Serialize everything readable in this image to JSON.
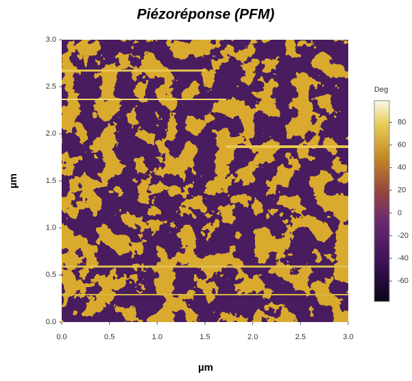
{
  "chart_data": {
    "type": "image",
    "title": "Piézoréponse (PFM)",
    "xlabel": "µm",
    "ylabel": "µm",
    "xlim": [
      0,
      3
    ],
    "ylim": [
      0,
      3
    ],
    "xticks": [
      {
        "value": 0,
        "label": "0.0"
      },
      0.5,
      {
        "value": 1,
        "label": "1.0"
      },
      1.5,
      {
        "value": 2,
        "label": "2.0"
      },
      2.5,
      {
        "value": 3,
        "label": "3.0"
      }
    ],
    "yticks": [
      {
        "value": 0,
        "label": "0.0"
      },
      0.5,
      {
        "value": 1,
        "label": "1.0"
      },
      1.5,
      {
        "value": 2,
        "label": "2.0"
      },
      2.5,
      {
        "value": 3,
        "label": "3.0"
      }
    ],
    "colorbar": {
      "label": "Deg",
      "clim": [
        -78,
        99
      ],
      "ticks": [
        80,
        60,
        40,
        20,
        0,
        -20,
        -40,
        -60
      ]
    }
  }
}
